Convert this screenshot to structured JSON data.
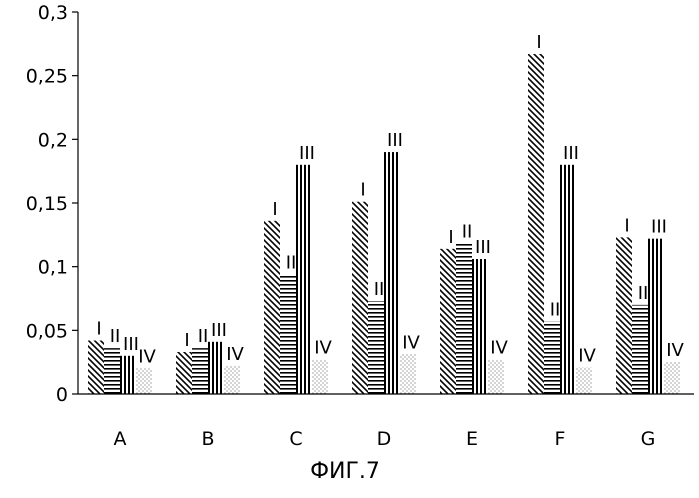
{
  "chart_data": {
    "type": "bar",
    "title": "",
    "xlabel": "",
    "ylabel": "",
    "caption": "ФИГ.7",
    "categories": [
      "A",
      "B",
      "C",
      "D",
      "E",
      "F",
      "G"
    ],
    "ylim": [
      0,
      0.3
    ],
    "yticks": [
      0,
      0.05,
      0.1,
      0.15,
      0.2,
      0.25,
      0.3
    ],
    "ytick_labels": [
      "0",
      "0,05",
      "0,1",
      "0,15",
      "0,2",
      "0,25",
      "0,3"
    ],
    "grid": false,
    "legend": "none",
    "bar_color": "#000000",
    "series": [
      {
        "label": "I",
        "pattern": "diagonal-hatch",
        "values": [
          0.042,
          0.033,
          0.136,
          0.151,
          0.114,
          0.267,
          0.123
        ]
      },
      {
        "label": "II",
        "pattern": "horizontal-lines",
        "values": [
          0.036,
          0.036,
          0.094,
          0.073,
          0.118,
          0.057,
          0.07
        ]
      },
      {
        "label": "III",
        "pattern": "vertical-lines",
        "values": [
          0.03,
          0.041,
          0.18,
          0.19,
          0.106,
          0.18,
          0.122
        ]
      },
      {
        "label": "IV",
        "pattern": "dotted",
        "values": [
          0.02,
          0.022,
          0.027,
          0.031,
          0.027,
          0.021,
          0.025
        ]
      }
    ]
  }
}
